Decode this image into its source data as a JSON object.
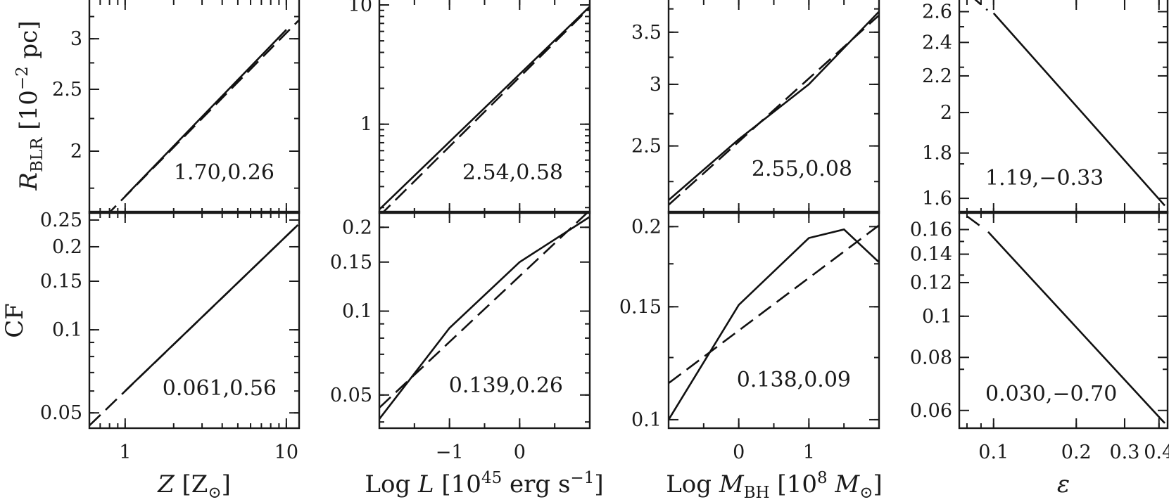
{
  "figure": {
    "bottom_axis_labels": [
      {
        "parts": [
          {
            "t": "Z",
            "it": true
          },
          {
            "t": " [Z"
          },
          {
            "t": "⊙",
            "sub": true
          },
          {
            "t": "]"
          }
        ]
      },
      {
        "parts": [
          {
            "t": "Log "
          },
          {
            "t": "L",
            "it": true
          },
          {
            "t": " [10"
          },
          {
            "t": "45",
            "sup": true
          },
          {
            "t": " erg s"
          },
          {
            "t": "−1",
            "sup": true
          },
          {
            "t": "]"
          }
        ]
      },
      {
        "parts": [
          {
            "t": "Log "
          },
          {
            "t": "M",
            "it": true
          },
          {
            "t": "BH",
            "sub": true
          },
          {
            "t": " [10"
          },
          {
            "t": "8",
            "sup": true
          },
          {
            "t": " "
          },
          {
            "t": "M",
            "it": true
          },
          {
            "t": "⊙",
            "sub": true
          },
          {
            "t": "]"
          }
        ]
      },
      {
        "parts": [
          {
            "t": "ε",
            "it": true
          }
        ]
      }
    ],
    "row_labels": [
      {
        "parts": [
          {
            "t": "R",
            "it": true
          },
          {
            "t": "BLR",
            "sub": true
          },
          {
            "t": " [10"
          },
          {
            "t": "−2",
            "sup": true
          },
          {
            "t": " pc]"
          }
        ]
      },
      {
        "parts": [
          {
            "t": "CF"
          }
        ]
      }
    ]
  },
  "chart_data": [
    {
      "type": "line",
      "row": "R_BLR",
      "col": 0,
      "xscale": "log",
      "yscale": "log",
      "xlim": [
        0.6,
        12
      ],
      "ylim": [
        1.6,
        3.45
      ],
      "xticks": [
        1,
        10
      ],
      "xtick_labels": [
        "1",
        "10"
      ],
      "yticks": [
        2,
        2.5,
        3
      ],
      "ytick_labels": [
        "2",
        "2.5",
        "3"
      ],
      "annotation": "1.70,0.26",
      "series": [
        {
          "style": "solid",
          "x": [
            1,
            10
          ],
          "y": [
            1.7,
            3.1
          ]
        },
        {
          "style": "dashed",
          "x": [
            0.6,
            12
          ],
          "y": [
            1.49,
            3.21
          ]
        }
      ]
    },
    {
      "type": "line",
      "row": "R_BLR",
      "col": 1,
      "xscale": "linear",
      "yscale": "log",
      "xlim": [
        -2,
        1
      ],
      "ylim": [
        0.18,
        11
      ],
      "xticks": [
        -1,
        0
      ],
      "xtick_labels": [
        "−1",
        "0"
      ],
      "yticks": [
        1,
        10
      ],
      "ytick_labels": [
        "1",
        "10"
      ],
      "annotation": "2.54,0.58",
      "series": [
        {
          "style": "solid",
          "x": [
            -2,
            1
          ],
          "y": [
            0.193,
            9.7
          ]
        },
        {
          "style": "dashed",
          "x": [
            -2,
            1
          ],
          "y": [
            0.17,
            9.5
          ]
        }
      ]
    },
    {
      "type": "line",
      "row": "R_BLR",
      "col": 2,
      "xscale": "linear",
      "yscale": "log",
      "xlim": [
        -1,
        2
      ],
      "ylim": [
        2.05,
        3.85
      ],
      "yticks": [
        2.5,
        3,
        3.5
      ],
      "ytick_labels": [
        "2.5",
        "3",
        "3.5"
      ],
      "annotation": "2.55,0.08",
      "series": [
        {
          "style": "solid",
          "x": [
            -1,
            0,
            1,
            2
          ],
          "y": [
            2.13,
            2.55,
            3.0,
            3.72
          ]
        },
        {
          "style": "dashed",
          "x": [
            -1,
            2
          ],
          "y": [
            2.1,
            3.68
          ]
        }
      ]
    },
    {
      "type": "line",
      "row": "R_BLR",
      "col": 3,
      "xscale": "log",
      "yscale": "log",
      "xlim": [
        0.075,
        0.43
      ],
      "ylim": [
        1.54,
        2.68
      ],
      "yticks": [
        1.6,
        1.8,
        2,
        2.2,
        2.4,
        2.6
      ],
      "ytick_labels": [
        "1.6",
        "1.8",
        "2",
        "2.2",
        "2.4",
        "2.6"
      ],
      "annotation": "1.19,−0.33",
      "series": [
        {
          "style": "solid",
          "x": [
            0.1,
            0.42
          ],
          "y": [
            2.59,
            1.57
          ]
        },
        {
          "style": "dashed",
          "x": [
            0.0815,
            0.095
          ],
          "y": [
            2.72,
            2.61
          ]
        }
      ]
    },
    {
      "type": "line",
      "row": "CF",
      "col": 0,
      "xscale": "log",
      "yscale": "log",
      "xlim": [
        0.6,
        12
      ],
      "ylim": [
        0.044,
        0.265
      ],
      "xticks": [
        1,
        10
      ],
      "xtick_labels": [
        "1",
        "10"
      ],
      "yticks": [
        0.05,
        0.1,
        0.15,
        0.2,
        0.25
      ],
      "ytick_labels": [
        "0.05",
        "0.1",
        "0.15",
        "0.2",
        "0.25"
      ],
      "annotation": "0.061,0.56",
      "series": [
        {
          "style": "solid",
          "x": [
            1,
            11.8
          ],
          "y": [
            0.06,
            0.24
          ]
        },
        {
          "style": "dashed",
          "x": [
            0.6,
            11.8
          ],
          "y": [
            0.045,
            0.24
          ]
        }
      ]
    },
    {
      "type": "line",
      "row": "CF",
      "col": 1,
      "xscale": "linear",
      "yscale": "log",
      "xlim": [
        -2,
        1
      ],
      "ylim": [
        0.038,
        0.225
      ],
      "xticks": [
        -1,
        0
      ],
      "xtick_labels": [
        "−1",
        "0"
      ],
      "yticks": [
        0.05,
        0.1,
        0.15,
        0.2
      ],
      "ytick_labels": [
        "0.05",
        "0.1",
        "0.15",
        "0.2"
      ],
      "annotation": "0.139,0.26",
      "series": [
        {
          "style": "solid",
          "x": [
            -2,
            -1,
            0,
            1
          ],
          "y": [
            0.041,
            0.087,
            0.15,
            0.218
          ]
        },
        {
          "style": "dashed",
          "x": [
            -2,
            1
          ],
          "y": [
            0.045,
            0.23
          ]
        }
      ]
    },
    {
      "type": "line",
      "row": "CF",
      "col": 2,
      "xscale": "linear",
      "yscale": "log",
      "xlim": [
        -1,
        2
      ],
      "ylim": [
        0.097,
        0.21
      ],
      "xticks": [
        0,
        1
      ],
      "xtick_labels": [
        "0",
        "1"
      ],
      "yticks": [
        0.1,
        0.15,
        0.2
      ],
      "ytick_labels": [
        "0.1",
        "0.15",
        "0.2"
      ],
      "annotation": "0.138,0.09",
      "series": [
        {
          "style": "solid",
          "x": [
            -1,
            0,
            1,
            1.5,
            2
          ],
          "y": [
            0.1,
            0.151,
            0.192,
            0.198,
            0.176
          ]
        },
        {
          "style": "dashed",
          "x": [
            -1,
            2
          ],
          "y": [
            0.114,
            0.201
          ]
        }
      ]
    },
    {
      "type": "line",
      "row": "CF",
      "col": 3,
      "xscale": "log",
      "yscale": "log",
      "xlim": [
        0.075,
        0.43
      ],
      "ylim": [
        0.0545,
        0.175
      ],
      "xticks": [
        0.1,
        0.2,
        0.3,
        0.4
      ],
      "xtick_labels": [
        "0.1",
        "0.2",
        "0.3",
        "0.4"
      ],
      "yticks": [
        0.06,
        0.08,
        0.1,
        0.12,
        0.14,
        0.16
      ],
      "ytick_labels": [
        "0.06",
        "0.08",
        "0.1",
        "0.12",
        "0.14",
        "0.16"
      ],
      "annotation": "0.030,−0.70",
      "series": [
        {
          "style": "solid",
          "x": [
            0.0955,
            0.42
          ],
          "y": [
            0.158,
            0.056
          ]
        },
        {
          "style": "dashed",
          "x": [
            0.08,
            0.092
          ],
          "y": [
            0.172,
            0.161
          ]
        }
      ]
    }
  ]
}
